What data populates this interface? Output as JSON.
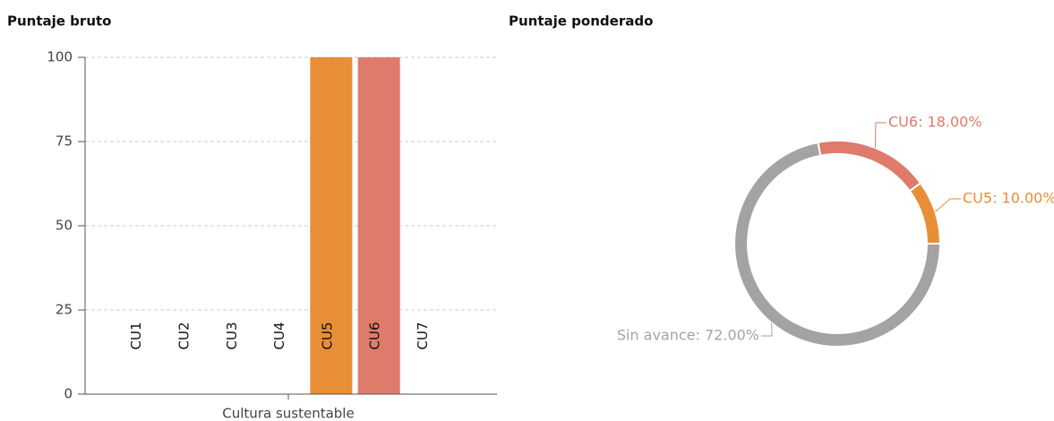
{
  "chart_data": [
    {
      "type": "bar",
      "title": "Puntaje bruto",
      "x_label": "Cultura sustentable",
      "categories": [
        "CU1",
        "CU2",
        "CU3",
        "CU4",
        "CU5",
        "CU6",
        "CU7"
      ],
      "values": [
        0,
        0,
        0,
        0,
        100,
        100,
        0
      ],
      "colors": [
        null,
        null,
        null,
        null,
        "#e78e36",
        "#de7b6b",
        null
      ],
      "ylim": [
        0,
        100
      ],
      "yticks": [
        0,
        25,
        50,
        75,
        100
      ],
      "grid": true
    },
    {
      "type": "donut",
      "title": "Puntaje ponderado",
      "values": [
        72,
        18,
        10
      ],
      "value_labels": [
        "Sin avance: 72.00%",
        "CU6: 18.00%",
        "CU5: 10.00%"
      ],
      "colors": [
        "#a3a3a3",
        "#de7b6b",
        "#e78e36"
      ]
    }
  ]
}
